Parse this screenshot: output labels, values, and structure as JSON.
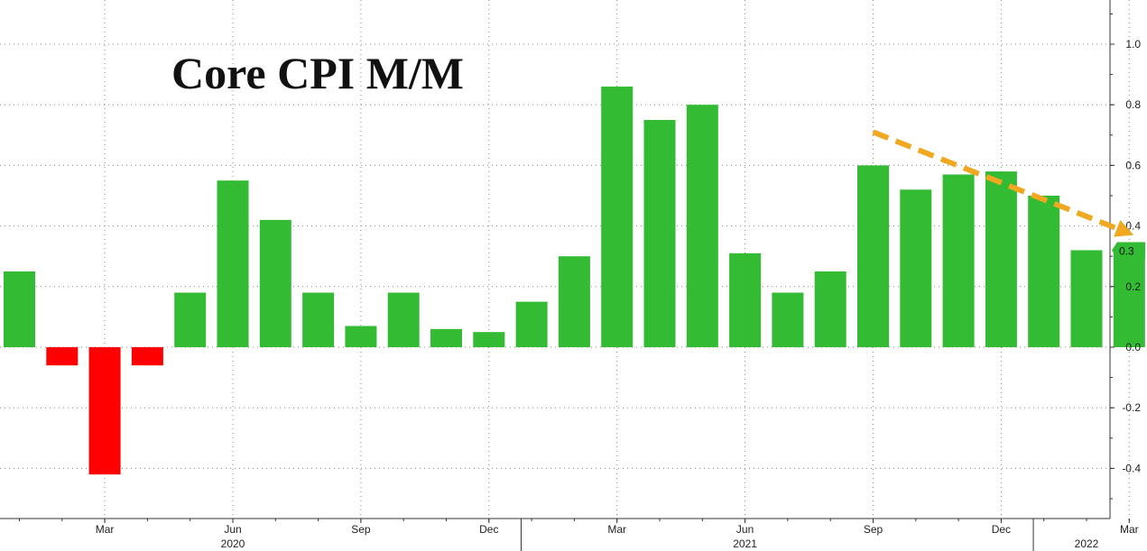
{
  "chart_data": {
    "type": "bar",
    "title": "Core CPI M/M",
    "categories": [
      "2020-01",
      "2020-02",
      "2020-03",
      "2020-04",
      "2020-05",
      "2020-06",
      "2020-07",
      "2020-08",
      "2020-09",
      "2020-10",
      "2020-11",
      "2020-12",
      "2021-01",
      "2021-02",
      "2021-03",
      "2021-04",
      "2021-05",
      "2021-06",
      "2021-07",
      "2021-08",
      "2021-09",
      "2021-10",
      "2021-11",
      "2021-12",
      "2022-01",
      "2022-02",
      "2022-03"
    ],
    "values": [
      0.25,
      -0.06,
      -0.42,
      -0.06,
      0.18,
      0.55,
      0.42,
      0.18,
      0.07,
      0.18,
      0.06,
      0.05,
      0.15,
      0.3,
      0.86,
      0.75,
      0.8,
      0.31,
      0.18,
      0.25,
      0.6,
      0.52,
      0.57,
      0.58,
      0.5,
      0.32,
      0.32
    ],
    "month_tick_labels": [
      {
        "label": "Mar",
        "category": "2020-03"
      },
      {
        "label": "Jun",
        "category": "2020-06"
      },
      {
        "label": "Sep",
        "category": "2020-09"
      },
      {
        "label": "Dec",
        "category": "2020-12"
      },
      {
        "label": "Mar",
        "category": "2021-03"
      },
      {
        "label": "Jun",
        "category": "2021-06"
      },
      {
        "label": "Sep",
        "category": "2021-09"
      },
      {
        "label": "Dec",
        "category": "2021-12"
      },
      {
        "label": "Mar",
        "category": "2022-03"
      }
    ],
    "year_labels": [
      {
        "label": "2020",
        "center": "2020-06"
      },
      {
        "label": "2021",
        "center": "2021-06"
      },
      {
        "label": "2022",
        "center": "2022-02"
      }
    ],
    "y_ticks": [
      -0.4,
      -0.2,
      0.0,
      0.2,
      0.4,
      0.6,
      0.8,
      1.0
    ],
    "y_tick_labels": [
      "-0.4",
      "-0.2",
      "0.0",
      "0.2",
      "0.4",
      "0.6",
      "0.8",
      "1.0"
    ],
    "ylim": [
      -0.57,
      1.14
    ],
    "last_value_label": "0.3",
    "grid": true,
    "trend_arrow": {
      "from_category": "2021-09",
      "from_value": 0.71,
      "to_category": "2022-03",
      "to_value": 0.37
    },
    "colors": {
      "positive": "#33bb33",
      "negative": "#ff0000",
      "arrow": "#f0a820",
      "grid": "#888888",
      "axis": "#333333",
      "last_value_bg": "#33bb33"
    }
  }
}
